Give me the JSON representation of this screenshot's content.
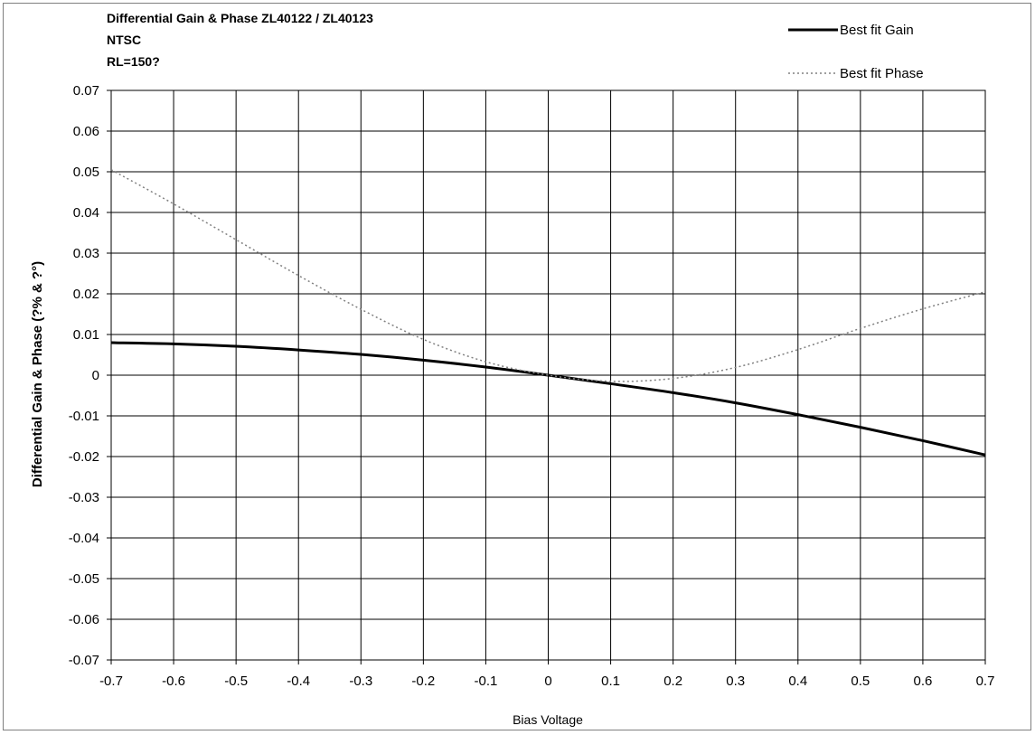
{
  "chart_data": {
    "type": "line",
    "title_lines": [
      "Differential Gain & Phase  ZL40122 / ZL40123",
      "NTSC",
      "RL=150?"
    ],
    "xlabel": "Bias Voltage",
    "ylabel": "Differential Gain & Phase (?% & ?°)",
    "xlim": [
      -0.7,
      0.7
    ],
    "ylim": [
      -0.07,
      0.07
    ],
    "x_ticks": [
      "-0.7",
      "-0.6",
      "-0.5",
      "-0.4",
      "-0.3",
      "-0.2",
      "-0.1",
      "0",
      "0.1",
      "0.2",
      "0.3",
      "0.4",
      "0.5",
      "0.6",
      "0.7"
    ],
    "y_ticks": [
      "0.07",
      "0.06",
      "0.05",
      "0.04",
      "0.03",
      "0.02",
      "0.01",
      "0",
      "-0.01",
      "-0.02",
      "-0.03",
      "-0.04",
      "-0.05",
      "-0.06",
      "-0.07"
    ],
    "grid": true,
    "legend_position": "top-right",
    "series": [
      {
        "name": "Best fit Gain",
        "style": "solid",
        "color": "#000000",
        "x": [
          -0.7,
          -0.6,
          -0.5,
          -0.4,
          -0.3,
          -0.2,
          -0.1,
          0,
          0.1,
          0.2,
          0.3,
          0.4,
          0.5,
          0.6,
          0.7
        ],
        "y": [
          0.008,
          0.0077,
          0.0071,
          0.0062,
          0.0051,
          0.0037,
          0.002,
          0.0,
          -0.0021,
          -0.0043,
          -0.0068,
          -0.0097,
          -0.0128,
          -0.0161,
          -0.0196
        ]
      },
      {
        "name": "Best fit Phase",
        "style": "dotted",
        "color": "#808080",
        "x": [
          -0.7,
          -0.6,
          -0.5,
          -0.4,
          -0.3,
          -0.2,
          -0.1,
          0,
          0.1,
          0.2,
          0.3,
          0.4,
          0.5,
          0.6,
          0.7
        ],
        "y": [
          0.0505,
          0.0421,
          0.0333,
          0.0245,
          0.0162,
          0.0088,
          0.0033,
          0.0,
          -0.0015,
          -0.0008,
          0.0019,
          0.0063,
          0.0115,
          0.0163,
          0.0205
        ]
      }
    ]
  }
}
